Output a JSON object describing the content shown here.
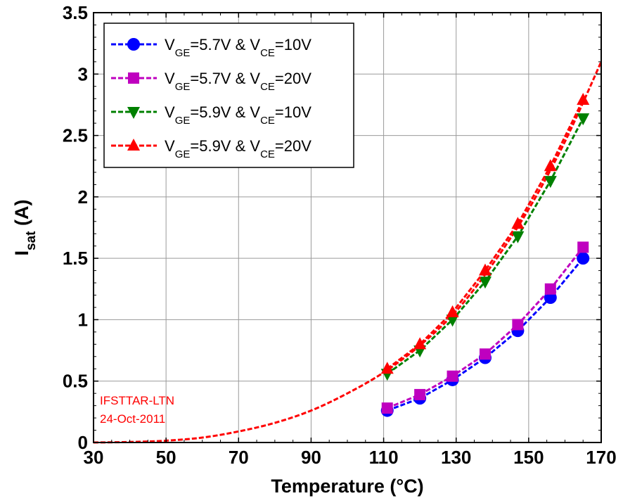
{
  "chart_data": {
    "type": "line",
    "xlabel": "Temperature (°C)",
    "ylabel": {
      "main": "I",
      "sub": "sat",
      "rest": " (A)"
    },
    "xlim": [
      30,
      170
    ],
    "ylim": [
      0,
      3.5
    ],
    "xticks": [
      "30",
      "50",
      "70",
      "90",
      "110",
      "130",
      "150",
      "170"
    ],
    "yticks": [
      "0",
      "0.5",
      "1",
      "1.5",
      "2",
      "2.5",
      "3",
      "3.5"
    ],
    "grid": true,
    "legend_position": "top-left",
    "x": [
      111,
      120,
      129,
      138,
      147,
      156,
      165
    ],
    "series": [
      {
        "name": "V_GE=5.7V & V_CE=10V",
        "label": {
          "v1": "V",
          "s1": "GE",
          "mid": "=5.7V & V",
          "s2": "CE",
          "end": "=10V"
        },
        "color": "#0000ff",
        "marker": "circle",
        "values": [
          0.26,
          0.36,
          0.51,
          0.69,
          0.91,
          1.18,
          1.5
        ]
      },
      {
        "name": "V_GE=5.7V & V_CE=20V",
        "label": {
          "v1": "V",
          "s1": "GE",
          "mid": "=5.7V & V",
          "s2": "CE",
          "end": "=20V"
        },
        "color": "#bf00bf",
        "marker": "square",
        "values": [
          0.28,
          0.39,
          0.54,
          0.72,
          0.96,
          1.25,
          1.59
        ]
      },
      {
        "name": "V_GE=5.9V & V_CE=10V",
        "label": {
          "v1": "V",
          "s1": "GE",
          "mid": "=5.9V & V",
          "s2": "CE",
          "end": "=10V"
        },
        "color": "#008000",
        "marker": "triangle-down",
        "values": [
          0.56,
          0.75,
          1.0,
          1.31,
          1.68,
          2.13,
          2.64
        ]
      },
      {
        "name": "V_GE=5.9V & V_CE=20V",
        "label": {
          "v1": "V",
          "s1": "GE",
          "mid": "=5.9V & V",
          "s2": "CE",
          "end": "=20V"
        },
        "color": "#ff0000",
        "marker": "triangle-up",
        "values": [
          0.6,
          0.8,
          1.06,
          1.4,
          1.78,
          2.25,
          2.79
        ]
      }
    ],
    "fit_curve": {
      "color": "#ff0000",
      "x": [
        30,
        40,
        50,
        60,
        70,
        80,
        90,
        100,
        110,
        120,
        130,
        140,
        150,
        160,
        170
      ],
      "y": [
        0.0,
        0.004,
        0.015,
        0.04,
        0.09,
        0.16,
        0.26,
        0.4,
        0.57,
        0.79,
        1.07,
        1.45,
        1.9,
        2.45,
        3.1
      ]
    },
    "annotations": [
      {
        "text": "IFSTTAR-LTN",
        "color": "#ff0000"
      },
      {
        "text": "24-Oct-2011",
        "color": "#ff0000"
      }
    ]
  }
}
